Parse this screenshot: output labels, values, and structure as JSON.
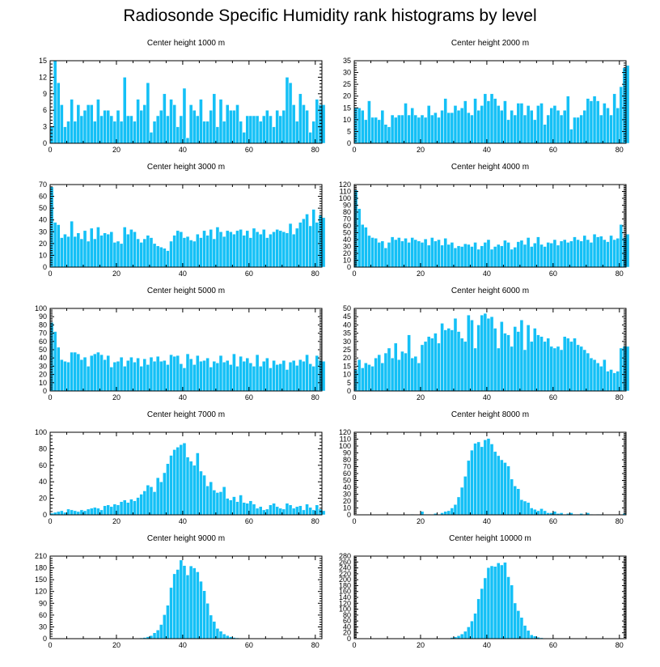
{
  "figure": {
    "title": "Radiosonde Specific Humidity rank histograms by level"
  },
  "colors": {
    "bar": "#14c0f6",
    "bar_edge": "#ffffff",
    "axis": "#000000"
  },
  "chart_data": [
    {
      "type": "bar",
      "title": "Center height 1000 m",
      "xlim": [
        0,
        82
      ],
      "ylim": [
        0,
        15
      ],
      "xticks": [
        0,
        20,
        40,
        60,
        80
      ],
      "yticks": [
        0,
        3,
        6,
        9,
        12,
        15
      ],
      "values": [
        3,
        15,
        11,
        7,
        3,
        4,
        8,
        4,
        7,
        5,
        6,
        7,
        7,
        4,
        8,
        5,
        6,
        6,
        5,
        4,
        6,
        4,
        12,
        5,
        5,
        4,
        8,
        6,
        7,
        11,
        2,
        4,
        5,
        6,
        9,
        5,
        8,
        7,
        3,
        5,
        10,
        1,
        7,
        6,
        5,
        8,
        4,
        4,
        6,
        9,
        3,
        8,
        4,
        7,
        6,
        6,
        7,
        4,
        2,
        5,
        5,
        5,
        5,
        4,
        5,
        6,
        5,
        3,
        6,
        5,
        6,
        12,
        11,
        7,
        4,
        9,
        7,
        6,
        2,
        4,
        8,
        7,
        7
      ]
    },
    {
      "type": "bar",
      "title": "Center height 2000 m",
      "xlim": [
        0,
        82
      ],
      "ylim": [
        0,
        35
      ],
      "xticks": [
        0,
        20,
        40,
        60,
        80
      ],
      "yticks": [
        0,
        5,
        10,
        15,
        20,
        25,
        30,
        35
      ],
      "values": [
        15,
        15,
        14,
        10,
        18,
        11,
        11,
        10,
        14,
        8,
        7,
        12,
        11,
        12,
        12,
        17,
        12,
        15,
        12,
        11,
        12,
        11,
        16,
        12,
        13,
        11,
        14,
        19,
        13,
        13,
        16,
        14,
        15,
        18,
        13,
        12,
        19,
        14,
        16,
        21,
        18,
        21,
        19,
        16,
        14,
        18,
        10,
        14,
        12,
        17,
        17,
        12,
        16,
        14,
        10,
        16,
        17,
        8,
        12,
        15,
        16,
        14,
        12,
        14,
        20,
        6,
        11,
        11,
        12,
        14,
        19,
        18,
        20,
        18,
        12,
        17,
        15,
        12,
        21,
        15,
        24,
        32,
        33
      ]
    },
    {
      "type": "bar",
      "title": "Center height 3000 m",
      "xlim": [
        0,
        82
      ],
      "ylim": [
        0,
        70
      ],
      "xticks": [
        0,
        20,
        40,
        60,
        80
      ],
      "yticks": [
        0,
        10,
        20,
        30,
        40,
        50,
        60,
        70
      ],
      "values": [
        68,
        38,
        36,
        25,
        28,
        26,
        39,
        26,
        29,
        24,
        31,
        22,
        33,
        24,
        34,
        27,
        29,
        28,
        30,
        21,
        22,
        20,
        34,
        28,
        32,
        30,
        24,
        21,
        24,
        27,
        25,
        20,
        18,
        17,
        16,
        14,
        22,
        27,
        31,
        30,
        25,
        26,
        23,
        22,
        28,
        25,
        31,
        27,
        32,
        24,
        34,
        30,
        26,
        31,
        30,
        28,
        31,
        32,
        27,
        31,
        25,
        33,
        30,
        28,
        32,
        25,
        28,
        30,
        32,
        31,
        30,
        29,
        37,
        28,
        33,
        38,
        41,
        45,
        35,
        49,
        38,
        44,
        42
      ]
    },
    {
      "type": "bar",
      "title": "Center height 4000 m",
      "xlim": [
        0,
        82
      ],
      "ylim": [
        0,
        120
      ],
      "xticks": [
        0,
        20,
        40,
        60,
        80
      ],
      "yticks": [
        0,
        10,
        20,
        30,
        40,
        50,
        60,
        70,
        80,
        90,
        100,
        110,
        120
      ],
      "values": [
        112,
        85,
        62,
        58,
        46,
        43,
        42,
        36,
        38,
        28,
        36,
        44,
        40,
        43,
        38,
        42,
        36,
        43,
        40,
        38,
        36,
        41,
        32,
        43,
        38,
        40,
        32,
        42,
        33,
        36,
        28,
        31,
        30,
        34,
        33,
        30,
        36,
        26,
        31,
        36,
        40,
        26,
        30,
        33,
        31,
        39,
        36,
        26,
        29,
        37,
        39,
        33,
        43,
        30,
        35,
        44,
        33,
        30,
        36,
        35,
        40,
        32,
        38,
        40,
        36,
        38,
        44,
        40,
        38,
        46,
        40,
        36,
        48,
        44,
        45,
        40,
        37,
        46,
        40,
        42,
        62,
        43,
        48
      ]
    },
    {
      "type": "bar",
      "title": "Center height 5000 m",
      "xlim": [
        0,
        82
      ],
      "ylim": [
        0,
        100
      ],
      "xticks": [
        0,
        20,
        40,
        60,
        80
      ],
      "yticks": [
        0,
        10,
        20,
        30,
        40,
        50,
        60,
        70,
        80,
        90,
        100
      ],
      "values": [
        83,
        72,
        53,
        38,
        36,
        35,
        47,
        47,
        45,
        38,
        41,
        30,
        43,
        45,
        47,
        44,
        38,
        43,
        29,
        35,
        36,
        41,
        30,
        37,
        41,
        35,
        40,
        30,
        39,
        32,
        41,
        36,
        42,
        36,
        37,
        32,
        44,
        42,
        43,
        33,
        28,
        45,
        39,
        32,
        43,
        36,
        37,
        40,
        29,
        36,
        34,
        43,
        35,
        37,
        32,
        45,
        30,
        42,
        36,
        40,
        34,
        30,
        44,
        30,
        36,
        40,
        28,
        37,
        32,
        33,
        37,
        26,
        35,
        37,
        31,
        38,
        36,
        44,
        33,
        30,
        43,
        37,
        36
      ]
    },
    {
      "type": "bar",
      "title": "Center height 6000 m",
      "xlim": [
        0,
        82
      ],
      "ylim": [
        0,
        50
      ],
      "xticks": [
        0,
        20,
        40,
        60,
        80
      ],
      "yticks": [
        0,
        5,
        10,
        15,
        20,
        25,
        30,
        35,
        40,
        45,
        50
      ],
      "values": [
        13,
        19,
        14,
        17,
        16,
        15,
        20,
        22,
        17,
        23,
        26,
        20,
        29,
        19,
        24,
        23,
        34,
        20,
        21,
        17,
        28,
        30,
        33,
        32,
        35,
        29,
        41,
        37,
        38,
        37,
        44,
        36,
        32,
        30,
        46,
        43,
        26,
        40,
        46,
        47,
        44,
        45,
        38,
        26,
        42,
        35,
        34,
        27,
        39,
        36,
        43,
        25,
        40,
        30,
        38,
        34,
        33,
        30,
        32,
        27,
        26,
        27,
        25,
        33,
        32,
        30,
        32,
        28,
        27,
        25,
        23,
        20,
        19,
        17,
        15,
        19,
        12,
        13,
        11,
        12,
        26,
        27,
        27
      ]
    },
    {
      "type": "bar",
      "title": "Center height 7000 m",
      "xlim": [
        0,
        82
      ],
      "ylim": [
        0,
        100
      ],
      "xticks": [
        0,
        20,
        40,
        60,
        80
      ],
      "yticks": [
        0,
        20,
        40,
        60,
        80,
        100
      ],
      "values": [
        2,
        3,
        4,
        5,
        3,
        7,
        6,
        5,
        4,
        6,
        5,
        7,
        8,
        9,
        8,
        6,
        11,
        12,
        10,
        13,
        12,
        16,
        18,
        15,
        19,
        17,
        21,
        25,
        29,
        36,
        34,
        28,
        45,
        40,
        51,
        62,
        72,
        79,
        82,
        85,
        87,
        70,
        65,
        60,
        75,
        53,
        48,
        35,
        40,
        30,
        27,
        28,
        34,
        20,
        18,
        22,
        16,
        24,
        15,
        14,
        17,
        13,
        8,
        10,
        6,
        7,
        12,
        14,
        10,
        8,
        7,
        14,
        12,
        8,
        10,
        11,
        6,
        13,
        9,
        6,
        12,
        7,
        5
      ]
    },
    {
      "type": "bar",
      "title": "Center height 8000 m",
      "xlim": [
        0,
        82
      ],
      "ylim": [
        0,
        120
      ],
      "xticks": [
        0,
        20,
        40,
        60,
        80
      ],
      "yticks": [
        0,
        10,
        20,
        30,
        40,
        50,
        60,
        70,
        80,
        90,
        100,
        110,
        120
      ],
      "values": [
        0,
        0,
        0,
        0,
        0,
        0,
        0,
        0,
        0,
        0,
        0,
        0,
        0,
        0,
        0,
        0,
        0,
        1,
        0,
        0,
        5,
        1,
        1,
        0,
        2,
        1,
        3,
        5,
        6,
        10,
        15,
        26,
        40,
        56,
        79,
        94,
        104,
        106,
        99,
        109,
        111,
        103,
        92,
        86,
        80,
        76,
        71,
        52,
        42,
        38,
        22,
        20,
        18,
        10,
        8,
        6,
        9,
        6,
        3,
        3,
        5,
        2,
        3,
        1,
        2,
        3,
        1,
        1,
        2,
        1,
        3,
        1,
        0,
        1,
        1,
        0,
        0,
        0,
        0,
        0,
        0,
        2,
        0
      ]
    },
    {
      "type": "bar",
      "title": "Center height 9000 m",
      "xlim": [
        0,
        82
      ],
      "ylim": [
        0,
        210
      ],
      "xticks": [
        0,
        20,
        40,
        60,
        80
      ],
      "yticks": [
        0,
        30,
        60,
        90,
        120,
        150,
        180,
        210
      ],
      "values": [
        0,
        0,
        0,
        0,
        0,
        0,
        0,
        0,
        0,
        0,
        0,
        0,
        0,
        0,
        0,
        0,
        0,
        0,
        0,
        0,
        0,
        0,
        0,
        0,
        0,
        0,
        1,
        2,
        3,
        5,
        8,
        15,
        22,
        36,
        61,
        85,
        130,
        165,
        176,
        200,
        186,
        162,
        185,
        180,
        170,
        146,
        122,
        90,
        60,
        44,
        26,
        19,
        12,
        8,
        5,
        3,
        2,
        1,
        1,
        0,
        0,
        0,
        0,
        0,
        0,
        0,
        0,
        0,
        0,
        0,
        0,
        0,
        0,
        0,
        0,
        0,
        0,
        0,
        0,
        0,
        0,
        0,
        0
      ]
    },
    {
      "type": "bar",
      "title": "Center height 10000 m",
      "xlim": [
        0,
        82
      ],
      "ylim": [
        0,
        280
      ],
      "xticks": [
        0,
        20,
        40,
        60,
        80
      ],
      "yticks": [
        0,
        20,
        40,
        60,
        80,
        100,
        120,
        140,
        160,
        180,
        200,
        220,
        240,
        260,
        280
      ],
      "values": [
        0,
        0,
        0,
        0,
        0,
        0,
        0,
        0,
        0,
        0,
        0,
        0,
        0,
        0,
        0,
        0,
        0,
        0,
        0,
        0,
        0,
        0,
        0,
        0,
        0,
        0,
        0,
        1,
        2,
        4,
        6,
        10,
        16,
        25,
        40,
        60,
        86,
        135,
        170,
        206,
        241,
        247,
        245,
        257,
        250,
        259,
        210,
        182,
        121,
        95,
        72,
        45,
        28,
        13,
        9,
        5,
        3,
        2,
        1,
        1,
        0,
        0,
        0,
        0,
        0,
        0,
        0,
        0,
        0,
        0,
        0,
        0,
        0,
        0,
        0,
        0,
        0,
        0,
        0,
        0,
        0,
        0,
        0
      ]
    }
  ]
}
